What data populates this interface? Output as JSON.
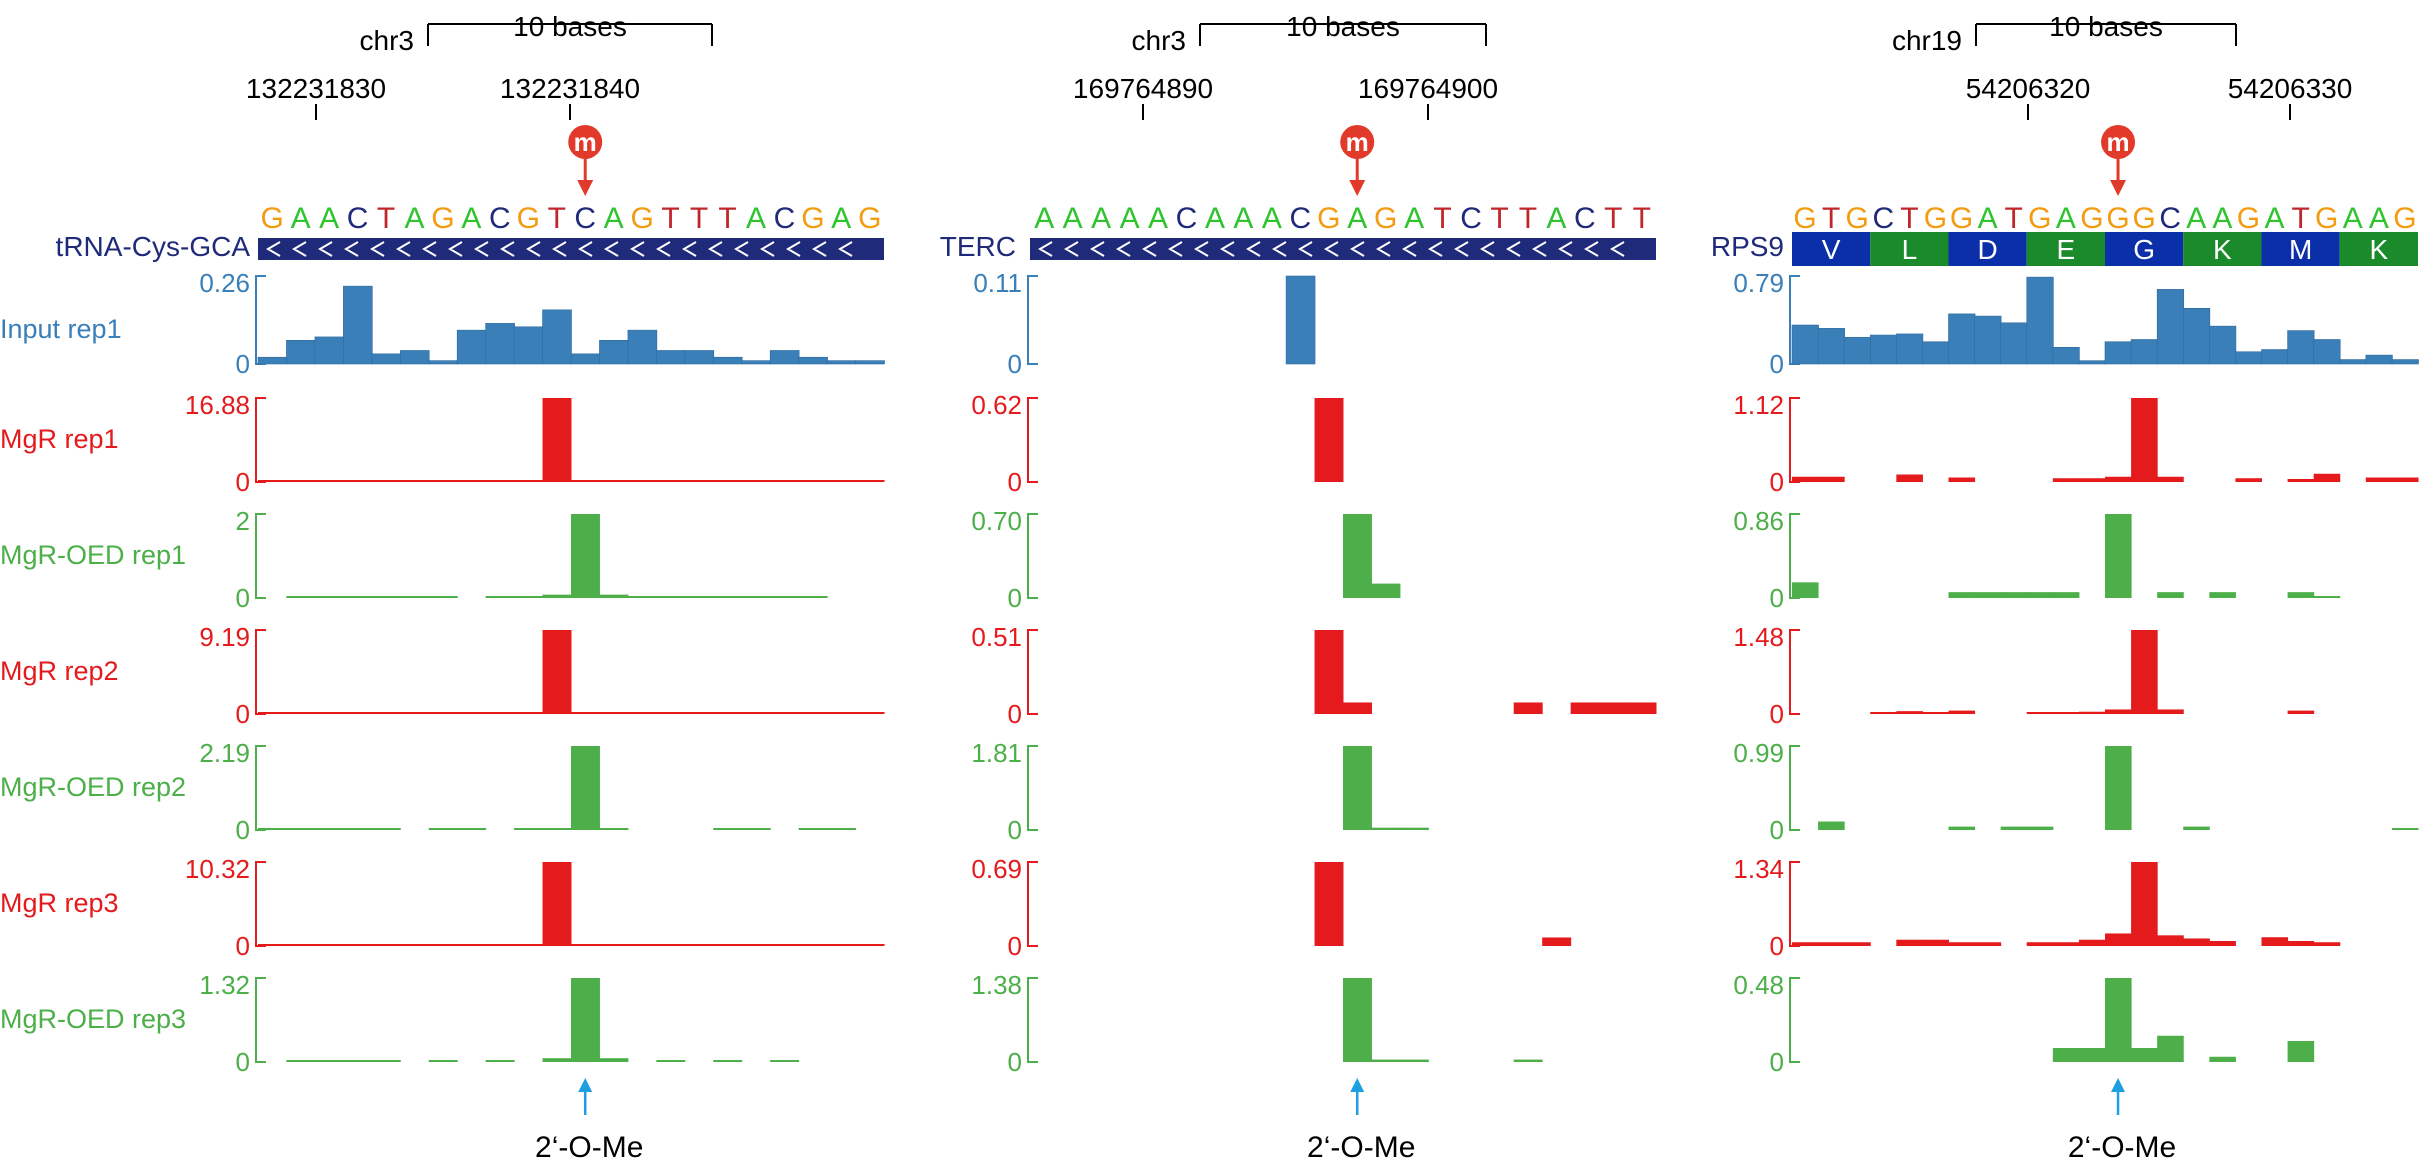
{
  "colors": {
    "input": "#3b7fb8",
    "mgr": "#e41a1c",
    "oed": "#4daf4a",
    "gene_bar": "#1f2a7a",
    "nuc": {
      "A": "#2ec42e",
      "C": "#1f2a7a",
      "G": "#f39c12",
      "T": "#c0252a"
    },
    "aa_blue": "#0b2fa8",
    "aa_green": "#1a8a2a",
    "marker": "#e23a2a",
    "arrow": "#1ea0e0"
  },
  "scale_label": "10 bases",
  "modification_label": "2‘-O-Me",
  "marker_letter": "m",
  "panels": [
    {
      "chrom": "chr3",
      "pos_labels": [
        "132231830",
        "132231840"
      ],
      "sequence": "GAACTAGACGTCAGTTTACGAG",
      "gene": "tRNA-Cys-GCA",
      "gene_style": "arrows",
      "amino_acids": [],
      "mod_index": 11,
      "tracks": [
        {
          "label": "Input rep1",
          "max": "0.26",
          "zero": "0",
          "kind": "input",
          "values": [
            0.02,
            0.07,
            0.08,
            0.23,
            0.03,
            0.04,
            0.01,
            0.1,
            0.12,
            0.11,
            0.16,
            0.03,
            0.07,
            0.1,
            0.04,
            0.04,
            0.02,
            0.01,
            0.04,
            0.02,
            0.01,
            0.01
          ]
        },
        {
          "label": "MgR rep1",
          "max": "16.88",
          "zero": "0",
          "kind": "mgr",
          "values": [
            0.1,
            0.1,
            0.1,
            0.1,
            0.2,
            0.1,
            0.1,
            0.1,
            0.1,
            0.1,
            16.88,
            0.2,
            0.1,
            0.1,
            0.1,
            0.1,
            0.1,
            0.1,
            0.1,
            0.1,
            0.1,
            0.1
          ]
        },
        {
          "label": "MgR-OED rep1",
          "max": "2",
          "zero": "0",
          "kind": "oed",
          "values": [
            0,
            0.01,
            0.01,
            0.01,
            0.01,
            0.01,
            0.01,
            0,
            0.01,
            0.01,
            0.08,
            2,
            0.08,
            0.01,
            0.01,
            0.01,
            0.01,
            0.01,
            0.01,
            0.01,
            0,
            0
          ]
        },
        {
          "label": "MgR rep2",
          "max": "9.19",
          "zero": "0",
          "kind": "mgr",
          "values": [
            0.1,
            0.05,
            0.05,
            0.15,
            0.1,
            0.1,
            0.05,
            0.05,
            0.05,
            0.05,
            9.19,
            0.1,
            0.05,
            0.05,
            0.05,
            0.05,
            0.05,
            0.05,
            0.05,
            0.05,
            0.05,
            0.05
          ]
        },
        {
          "label": "MgR-OED rep2",
          "max": "2.19",
          "zero": "0",
          "kind": "oed",
          "values": [
            0.01,
            0.01,
            0.01,
            0.01,
            0.01,
            0,
            0.01,
            0.01,
            0,
            0.01,
            0.01,
            2.19,
            0.04,
            0,
            0,
            0,
            0.01,
            0.01,
            0,
            0.01,
            0.01,
            0
          ]
        },
        {
          "label": "MgR rep3",
          "max": "10.32",
          "zero": "0",
          "kind": "mgr",
          "values": [
            0.05,
            0.05,
            0.05,
            0.1,
            0.05,
            0.05,
            0.05,
            0.05,
            0.05,
            0.05,
            10.32,
            0.1,
            0.05,
            0.05,
            0.05,
            0.05,
            0.05,
            0.05,
            0.05,
            0.05,
            0.05,
            0.05
          ]
        },
        {
          "label": "MgR-OED rep3",
          "max": "1.32",
          "zero": "0",
          "kind": "oed",
          "values": [
            0,
            0.01,
            0.01,
            0.01,
            0.01,
            0,
            0.01,
            0,
            0.01,
            0,
            0.06,
            1.32,
            0.06,
            0,
            0.01,
            0,
            0.01,
            0,
            0.01,
            0,
            0,
            0
          ]
        }
      ]
    },
    {
      "chrom": "chr3",
      "pos_labels": [
        "169764890",
        "169764900"
      ],
      "sequence": "AAAAACAAACGAGATCTTACTT",
      "gene": "TERC",
      "gene_style": "arrows",
      "amino_acids": [],
      "mod_index": 11,
      "tracks": [
        {
          "label": "",
          "max": "0.11",
          "zero": "0",
          "kind": "input",
          "values": [
            0,
            0,
            0,
            0,
            0,
            0,
            0,
            0,
            0,
            0.11,
            0,
            0,
            0,
            0,
            0,
            0,
            0,
            0,
            0,
            0,
            0,
            0
          ]
        },
        {
          "label": "",
          "max": "0.62",
          "zero": "0",
          "kind": "mgr",
          "values": [
            0,
            0,
            0,
            0,
            0,
            0,
            0,
            0,
            0,
            0,
            0.62,
            0,
            0,
            0,
            0,
            0,
            0,
            0,
            0,
            0,
            0,
            0
          ]
        },
        {
          "label": "",
          "max": "0.70",
          "zero": "0",
          "kind": "oed",
          "values": [
            0,
            0,
            0,
            0,
            0,
            0,
            0,
            0,
            0,
            0,
            0,
            0.7,
            0.12,
            0,
            0,
            0,
            0,
            0,
            0,
            0,
            0,
            0
          ]
        },
        {
          "label": "",
          "max": "0.51",
          "zero": "0",
          "kind": "mgr",
          "values": [
            0,
            0,
            0,
            0,
            0,
            0,
            0,
            0,
            0,
            0,
            0.51,
            0.07,
            0,
            0,
            0,
            0,
            0,
            0.07,
            0,
            0.07,
            0.07,
            0.07
          ]
        },
        {
          "label": "",
          "max": "1.81",
          "zero": "0",
          "kind": "oed",
          "values": [
            0,
            0,
            0,
            0,
            0,
            0,
            0,
            0,
            0,
            0,
            0,
            1.81,
            0.05,
            0.05,
            0,
            0,
            0,
            0,
            0,
            0,
            0,
            0
          ]
        },
        {
          "label": "",
          "max": "0.69",
          "zero": "0",
          "kind": "mgr",
          "values": [
            0,
            0,
            0,
            0,
            0,
            0,
            0,
            0,
            0,
            0,
            0.69,
            0,
            0,
            0,
            0,
            0,
            0,
            0,
            0.07,
            0,
            0,
            0
          ]
        },
        {
          "label": "",
          "max": "1.38",
          "zero": "0",
          "kind": "oed",
          "values": [
            0,
            0,
            0,
            0,
            0,
            0,
            0,
            0,
            0,
            0,
            0,
            1.38,
            0.04,
            0.04,
            0,
            0,
            0,
            0.04,
            0,
            0,
            0,
            0
          ]
        }
      ]
    },
    {
      "chrom": "chr19",
      "pos_labels": [
        "54206320",
        "54206330"
      ],
      "sequence": "GTGCTGGATGAGGGCAAGATGAAG",
      "gene": "RPS9",
      "gene_style": "codons",
      "amino_acids": [
        "V",
        "L",
        "D",
        "E",
        "G",
        "K",
        "M",
        "K"
      ],
      "mod_index": 12,
      "tracks": [
        {
          "label": "",
          "max": "0.79",
          "zero": "0",
          "kind": "input",
          "values": [
            0.35,
            0.32,
            0.24,
            0.26,
            0.27,
            0.2,
            0.45,
            0.43,
            0.37,
            0.78,
            0.15,
            0.03,
            0.2,
            0.22,
            0.67,
            0.5,
            0.34,
            0.11,
            0.13,
            0.3,
            0.22,
            0.04,
            0.08,
            0.04
          ]
        },
        {
          "label": "",
          "max": "1.12",
          "zero": "0",
          "kind": "mgr",
          "values": [
            0.07,
            0.07,
            0,
            0,
            0.1,
            0,
            0.06,
            0,
            0,
            0,
            0.05,
            0.05,
            0.07,
            1.12,
            0.07,
            0,
            0,
            0.05,
            0,
            0.04,
            0.11,
            0,
            0.06,
            0.06
          ]
        },
        {
          "label": "",
          "max": "0.86",
          "zero": "0",
          "kind": "oed",
          "values": [
            0.16,
            0,
            0,
            0,
            0,
            0,
            0.06,
            0.06,
            0.06,
            0.06,
            0.06,
            0,
            0.86,
            0,
            0.06,
            0,
            0.06,
            0,
            0,
            0.06,
            0.02,
            0,
            0,
            0
          ]
        },
        {
          "label": "",
          "max": "1.48",
          "zero": "0",
          "kind": "mgr",
          "values": [
            0,
            0,
            0,
            0.03,
            0.05,
            0.03,
            0.06,
            0,
            0,
            0.02,
            0.02,
            0.04,
            0.08,
            1.48,
            0.08,
            0,
            0,
            0,
            0,
            0.06,
            0,
            0,
            0,
            0
          ]
        },
        {
          "label": "",
          "max": "0.99",
          "zero": "0",
          "kind": "oed",
          "values": [
            0,
            0.1,
            0,
            0,
            0,
            0,
            0.04,
            0,
            0.04,
            0.04,
            0,
            0,
            0.99,
            0,
            0,
            0.04,
            0,
            0,
            0,
            0,
            0,
            0,
            0,
            0.02
          ]
        },
        {
          "label": "",
          "max": "1.34",
          "zero": "0",
          "kind": "mgr",
          "values": [
            0.06,
            0.06,
            0.06,
            0,
            0.1,
            0.1,
            0.06,
            0.06,
            0,
            0.06,
            0.06,
            0.1,
            0.2,
            1.34,
            0.17,
            0.12,
            0.08,
            0,
            0.14,
            0.08,
            0.06,
            0,
            0,
            0
          ]
        },
        {
          "label": "",
          "max": "0.48",
          "zero": "0",
          "kind": "oed",
          "values": [
            0,
            0,
            0,
            0,
            0,
            0,
            0,
            0,
            0,
            0,
            0.08,
            0.08,
            0.48,
            0.08,
            0.15,
            0,
            0.03,
            0,
            0,
            0.12,
            0,
            0,
            0,
            0
          ]
        }
      ]
    }
  ]
}
